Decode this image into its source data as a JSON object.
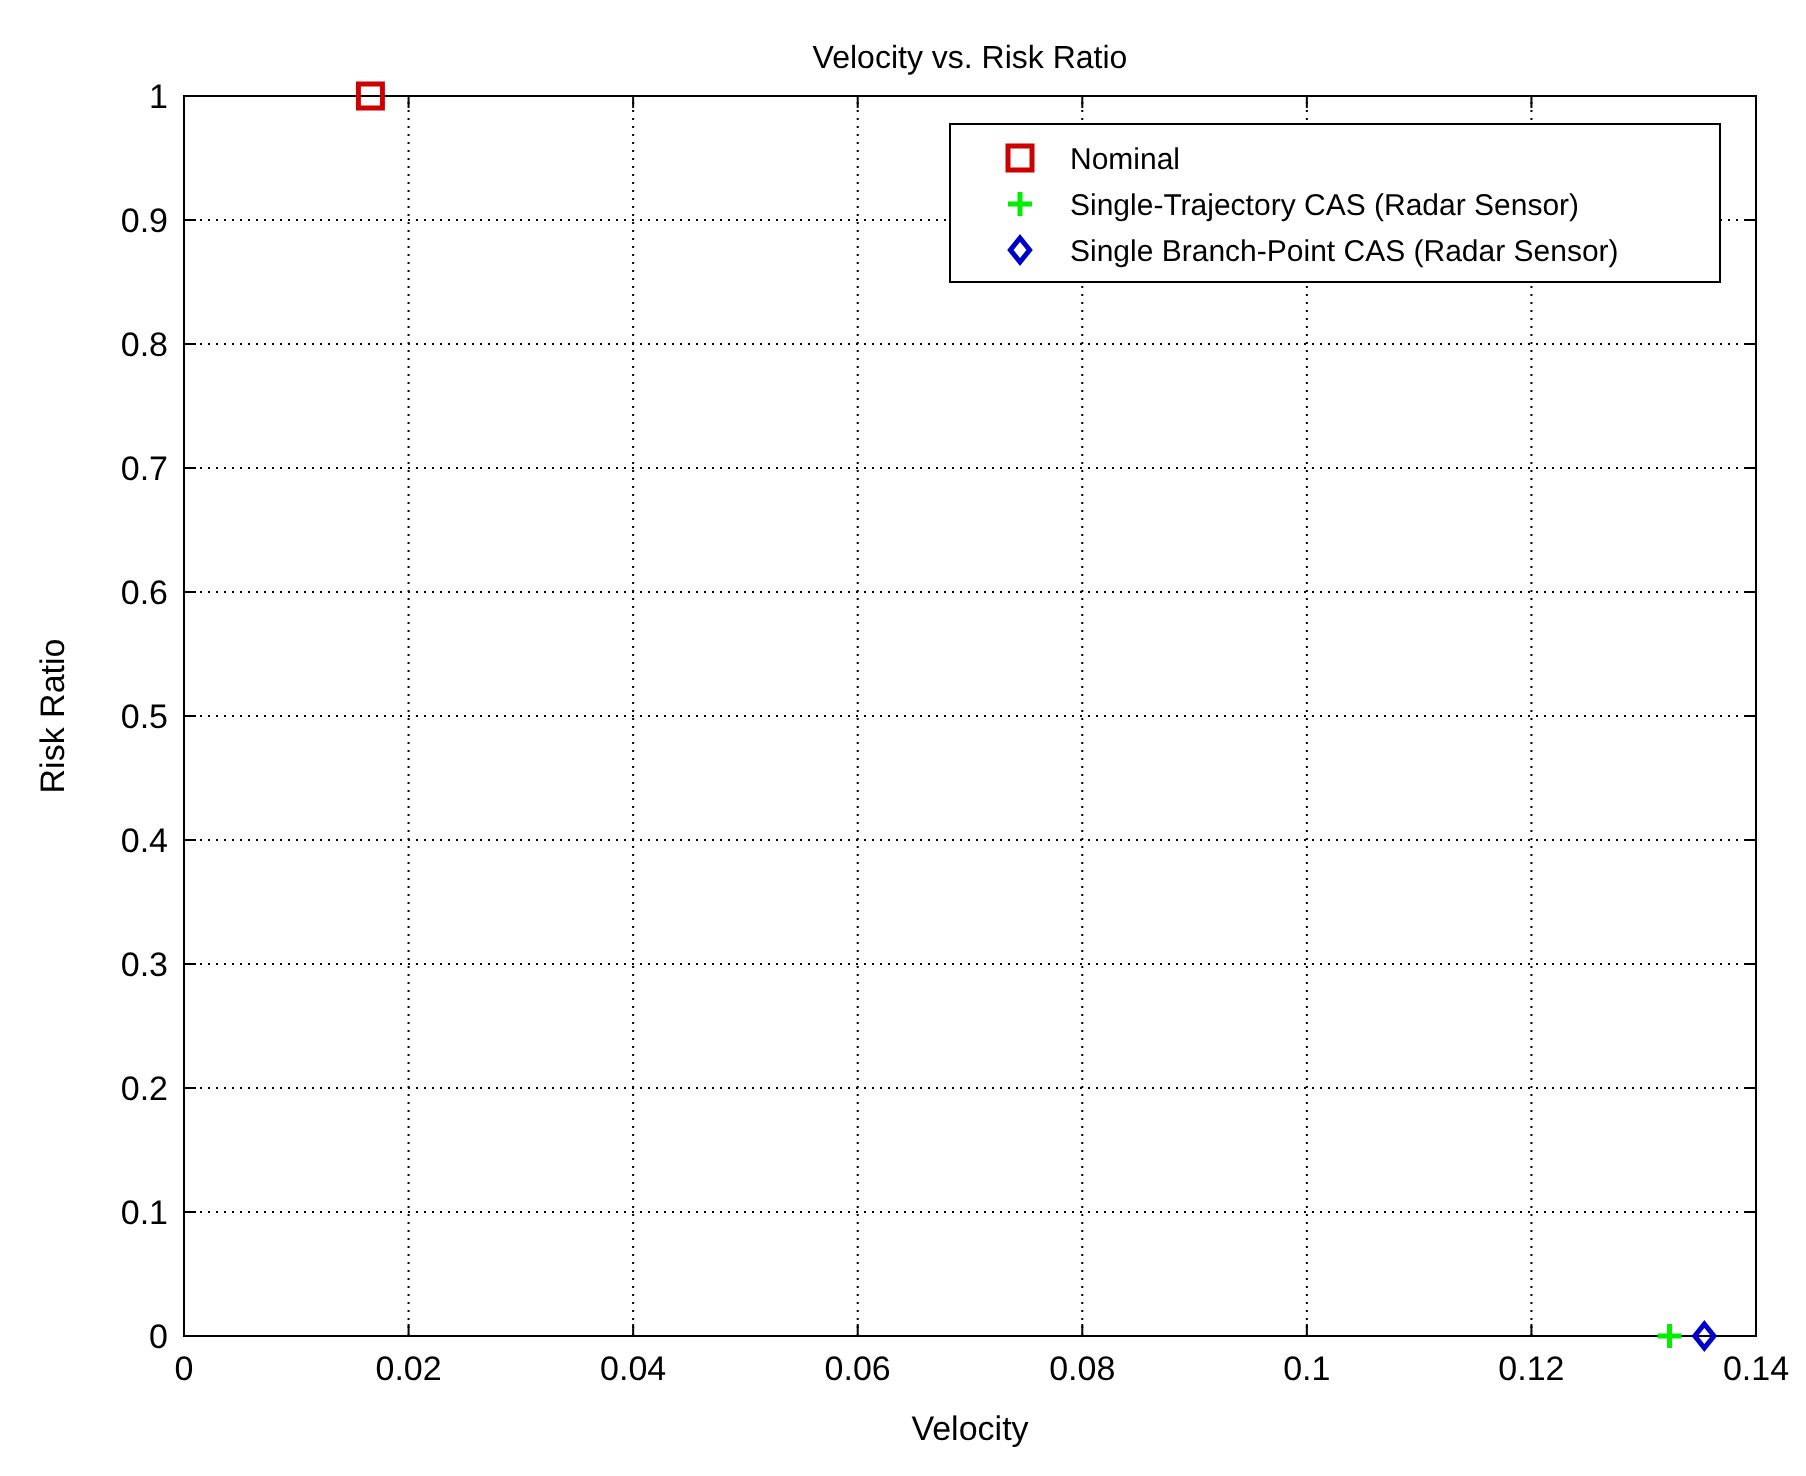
{
  "chart_data": {
    "type": "scatter",
    "title": "Velocity vs. Risk Ratio",
    "xlabel": "Velocity",
    "ylabel": "Risk Ratio",
    "xlim": [
      0,
      0.14
    ],
    "xticks": [
      0,
      0.02,
      0.04,
      0.06,
      0.08,
      0.1,
      0.12,
      0.14
    ],
    "ylim": [
      0,
      1
    ],
    "yticks": [
      0,
      0.1,
      0.2,
      0.3,
      0.4,
      0.5,
      0.6,
      0.7,
      0.8,
      0.9,
      1
    ],
    "grid": true,
    "legend": "top right",
    "series": [
      {
        "name": "Nominal",
        "color": "#cc0000",
        "marker": "square",
        "x": [
          0.0166
        ],
        "values": [
          1
        ]
      },
      {
        "name": "Single-Trajectory CAS (Radar Sensor)",
        "color": "#00ee00",
        "marker": "cross",
        "x": [
          0.1323
        ],
        "values": [
          0
        ]
      },
      {
        "name": "Single Branch-Point CAS (Radar Sensor)",
        "color": "#0000cc",
        "marker": "diamond",
        "x": [
          0.1354
        ],
        "values": [
          0
        ]
      }
    ]
  }
}
